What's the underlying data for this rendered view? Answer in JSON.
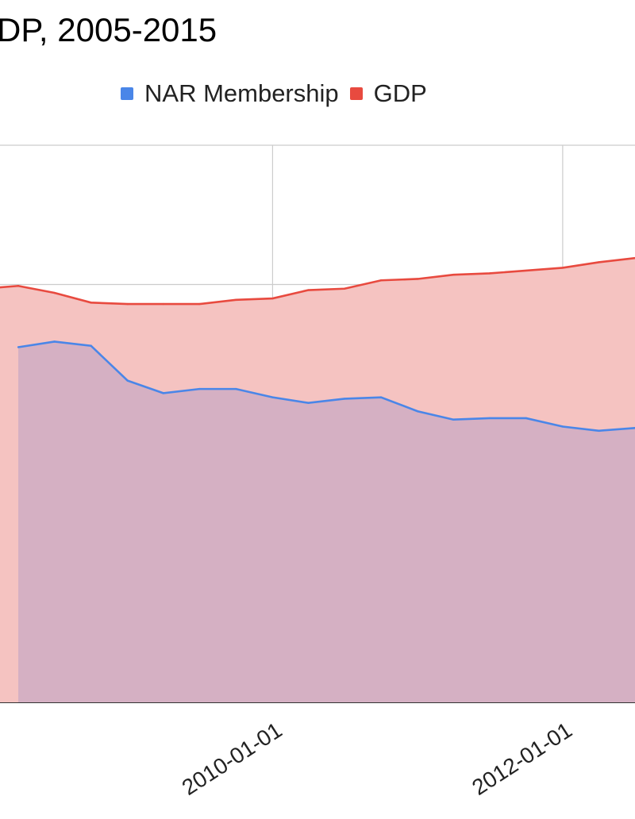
{
  "colors": {
    "nar": "#4a86e8",
    "gdp": "#e84a3f",
    "gdp_fill": "#f5c3c1",
    "nar_fill": "#cfadc3",
    "grid": "#cccccc",
    "axis": "#333333"
  },
  "chart_data": {
    "type": "area",
    "title": "DP, 2005-2015",
    "legend_position": "top",
    "grid": true,
    "x_tick_labels": [
      "2010-01-01",
      "2012-01-01"
    ],
    "x_range": [
      "2008-02-15",
      "2012-07-01"
    ],
    "y_range": [
      0,
      4
    ],
    "series": [
      {
        "name": "NAR Membership",
        "color_key": "nar",
        "x": [
          "2008-04-01",
          "2008-07-01",
          "2008-10-01",
          "2009-01-01",
          "2009-04-01",
          "2009-07-01",
          "2009-10-01",
          "2010-01-01",
          "2010-04-01",
          "2010-07-01",
          "2010-10-01",
          "2011-01-01",
          "2011-04-01",
          "2011-07-01",
          "2011-10-01",
          "2012-01-01",
          "2012-04-01",
          "2012-07-01"
        ],
        "values": [
          2.55,
          2.59,
          2.56,
          2.31,
          2.22,
          2.25,
          2.25,
          2.19,
          2.15,
          2.18,
          2.19,
          2.09,
          2.03,
          2.04,
          2.04,
          1.98,
          1.95,
          1.97
        ]
      },
      {
        "name": "GDP",
        "color_key": "gdp",
        "x": [
          "2008-01-01",
          "2008-04-01",
          "2008-07-01",
          "2008-10-01",
          "2009-01-01",
          "2009-04-01",
          "2009-07-01",
          "2009-10-01",
          "2010-01-01",
          "2010-04-01",
          "2010-07-01",
          "2010-10-01",
          "2011-01-01",
          "2011-04-01",
          "2011-07-01",
          "2012-01-01",
          "2012-04-01",
          "2012-07-01"
        ],
        "values": [
          2.97,
          2.99,
          2.94,
          2.87,
          2.86,
          2.86,
          2.86,
          2.89,
          2.9,
          2.96,
          2.97,
          3.03,
          3.04,
          3.07,
          3.08,
          3.12,
          3.16,
          3.19
        ]
      }
    ]
  }
}
